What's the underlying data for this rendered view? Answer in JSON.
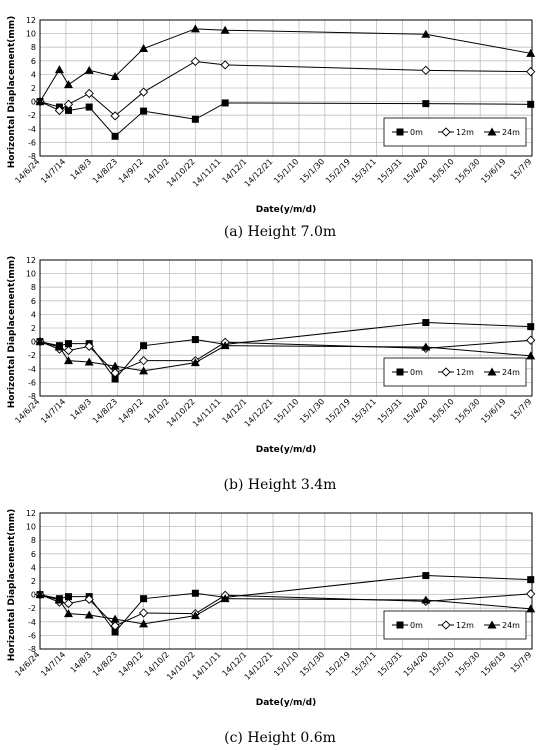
{
  "chart_data": [
    {
      "type": "line",
      "caption": "(a)  Height  7.0m",
      "xlabel": "Date(y/m/d)",
      "ylabel": "Horizontal Diaplacement(mm)",
      "ylim": [
        -8,
        12
      ],
      "yticks": [
        -8,
        -6,
        -4,
        -2,
        0,
        2,
        4,
        6,
        8,
        10,
        12
      ],
      "xlim": [
        "2014-06-24",
        "2015-07-09"
      ],
      "x_tick_labels": [
        "14/6/24",
        "14/7/14",
        "14/8/3",
        "14/8/23",
        "14/9/12",
        "14/10/2",
        "14/10/22",
        "14/11/11",
        "14/12/1",
        "14/12/21",
        "15/1/10",
        "15/1/30",
        "15/2/19",
        "15/3/11",
        "15/3/31",
        "15/4/20",
        "15/5/10",
        "15/5/30",
        "15/6/19",
        "15/7/9"
      ],
      "grid": true,
      "legend": "bottom-right",
      "series": [
        {
          "name": "0m",
          "marker": "square",
          "x": [
            "2014-06-24",
            "2014-07-09",
            "2014-07-16",
            "2014-08-01",
            "2014-08-21",
            "2014-09-12",
            "2014-10-22",
            "2014-11-14",
            "2015-04-18",
            "2015-07-08"
          ],
          "y": [
            0,
            -0.8,
            -1.3,
            -0.8,
            -5.1,
            -1.4,
            -2.6,
            -0.2,
            -0.3,
            -0.4
          ]
        },
        {
          "name": "12m",
          "marker": "diamond-open",
          "x": [
            "2014-06-24",
            "2014-07-09",
            "2014-07-16",
            "2014-08-01",
            "2014-08-21",
            "2014-09-12",
            "2014-10-22",
            "2014-11-14",
            "2015-04-18",
            "2015-07-08"
          ],
          "y": [
            0,
            -1.3,
            -0.4,
            1.2,
            -2.1,
            1.4,
            5.9,
            5.4,
            4.6,
            4.4
          ]
        },
        {
          "name": "24m",
          "marker": "triangle",
          "x": [
            "2014-06-24",
            "2014-07-09",
            "2014-07-16",
            "2014-08-01",
            "2014-08-21",
            "2014-09-12",
            "2014-10-22",
            "2014-11-14",
            "2015-04-18",
            "2015-07-08"
          ],
          "y": [
            0,
            4.7,
            2.5,
            4.6,
            3.7,
            7.8,
            10.7,
            10.5,
            9.9,
            7.1
          ]
        }
      ]
    },
    {
      "type": "line",
      "caption": "(b)  Height  3.4m",
      "xlabel": "Date(y/m/d)",
      "ylabel": "Horizontal Diaplacement(mm)",
      "ylim": [
        -8,
        12
      ],
      "yticks": [
        -8,
        -6,
        -4,
        -2,
        0,
        2,
        4,
        6,
        8,
        10,
        12
      ],
      "xlim": [
        "2014-06-24",
        "2015-07-09"
      ],
      "x_tick_labels": [
        "14/6/24",
        "14/7/14",
        "14/8/3",
        "14/8/23",
        "14/9/12",
        "14/10/2",
        "14/10/22",
        "14/11/11",
        "14/12/1",
        "14/12/21",
        "15/1/10",
        "15/1/30",
        "15/2/19",
        "15/3/11",
        "15/3/31",
        "15/4/20",
        "15/5/10",
        "15/5/30",
        "15/6/19",
        "15/7/9"
      ],
      "grid": true,
      "legend": "bottom-right",
      "series": [
        {
          "name": "0m",
          "marker": "square",
          "x": [
            "2014-06-24",
            "2014-07-09",
            "2014-07-16",
            "2014-08-01",
            "2014-08-21",
            "2014-09-12",
            "2014-10-22",
            "2014-11-14",
            "2015-04-18",
            "2015-07-08"
          ],
          "y": [
            0,
            -0.6,
            -0.3,
            -0.3,
            -5.5,
            -0.6,
            0.3,
            -0.4,
            2.8,
            2.2
          ]
        },
        {
          "name": "12m",
          "marker": "diamond-open",
          "x": [
            "2014-06-24",
            "2014-07-09",
            "2014-07-16",
            "2014-08-01",
            "2014-08-21",
            "2014-09-12",
            "2014-10-22",
            "2014-11-14",
            "2015-04-18",
            "2015-07-08"
          ],
          "y": [
            0,
            -1.1,
            -1.3,
            -0.7,
            -4.6,
            -2.8,
            -2.8,
            -0.1,
            -1,
            0.2
          ]
        },
        {
          "name": "24m",
          "marker": "triangle",
          "x": [
            "2014-06-24",
            "2014-07-09",
            "2014-07-16",
            "2014-08-01",
            "2014-08-21",
            "2014-09-12",
            "2014-10-22",
            "2014-11-14",
            "2015-04-18",
            "2015-07-08"
          ],
          "y": [
            0,
            -0.8,
            -2.8,
            -3,
            -3.6,
            -4.3,
            -3.1,
            -0.6,
            -0.8,
            -2.1
          ]
        }
      ]
    },
    {
      "type": "line",
      "caption": "(c)  Height  0.6m",
      "xlabel": "Date(y/m/d)",
      "ylabel": "Horizontal Diaplacement(mm)",
      "ylim": [
        -8,
        12
      ],
      "yticks": [
        -8,
        -6,
        -4,
        -2,
        0,
        2,
        4,
        6,
        8,
        10,
        12
      ],
      "xlim": [
        "2014-06-24",
        "2015-07-09"
      ],
      "x_tick_labels": [
        "14/6/24",
        "14/7/14",
        "14/8/3",
        "14/8/23",
        "14/9/12",
        "14/10/2",
        "14/10/22",
        "14/11/11",
        "14/12/1",
        "14/12/21",
        "15/1/10",
        "15/1/30",
        "15/2/19",
        "15/3/11",
        "15/3/31",
        "15/4/20",
        "15/5/10",
        "15/5/30",
        "15/6/19",
        "15/7/9"
      ],
      "grid": true,
      "legend": "bottom-right",
      "series": [
        {
          "name": "0m",
          "marker": "square",
          "x": [
            "2014-06-24",
            "2014-07-09",
            "2014-07-16",
            "2014-08-01",
            "2014-08-21",
            "2014-09-12",
            "2014-10-22",
            "2014-11-14",
            "2015-04-18",
            "2015-07-08"
          ],
          "y": [
            0,
            -0.6,
            -0.3,
            -0.3,
            -5.5,
            -0.6,
            0.2,
            -0.4,
            2.8,
            2.2
          ]
        },
        {
          "name": "12m",
          "marker": "diamond-open",
          "x": [
            "2014-06-24",
            "2014-07-09",
            "2014-07-16",
            "2014-08-01",
            "2014-08-21",
            "2014-09-12",
            "2014-10-22",
            "2014-11-14",
            "2015-04-18",
            "2015-07-08"
          ],
          "y": [
            0,
            -1.1,
            -1.3,
            -0.7,
            -4.6,
            -2.7,
            -2.8,
            -0.1,
            -1,
            0.1
          ]
        },
        {
          "name": "24m",
          "marker": "triangle",
          "x": [
            "2014-06-24",
            "2014-07-09",
            "2014-07-16",
            "2014-08-01",
            "2014-08-21",
            "2014-09-12",
            "2014-10-22",
            "2014-11-14",
            "2015-04-18",
            "2015-07-08"
          ],
          "y": [
            0,
            -0.8,
            -2.8,
            -3,
            -3.6,
            -4.3,
            -3.1,
            -0.6,
            -0.8,
            -2.1
          ]
        }
      ]
    }
  ]
}
